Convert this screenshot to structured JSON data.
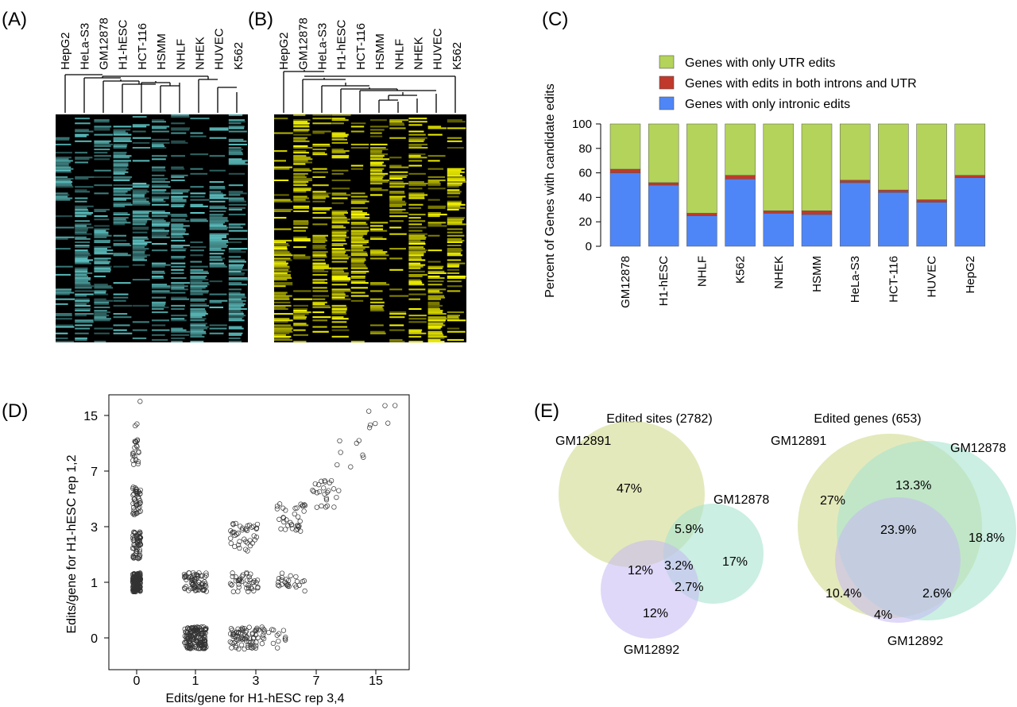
{
  "panels": {
    "a": "(A)",
    "b": "(B)",
    "c": "(C)",
    "d": "(D)",
    "e": "(E)"
  },
  "heatmap_a": {
    "columns": [
      "HepG2",
      "HeLa-S3",
      "GM12878",
      "H1-hESC",
      "HCT-116",
      "HSMM",
      "NHLF",
      "NHEK",
      "HUVEC",
      "K562"
    ],
    "color": "#5fc4c4",
    "background": "#000000"
  },
  "heatmap_b": {
    "columns": [
      "HepG2",
      "GM12878",
      "HeLa-S3",
      "H1-hESC",
      "HCT-116",
      "HSMM",
      "NHLF",
      "NHEK",
      "HUVEC",
      "K562"
    ],
    "color": "#ffff00",
    "background": "#000000"
  },
  "colors": {
    "utr": "#b3d35a",
    "both": "#c0392b",
    "intronic": "#4f86f7",
    "venn_gm12891": "#dde3a8",
    "venn_gm12878": "#a9e4cf",
    "venn_gm12892": "#c5b8f2"
  },
  "chart_data": [
    {
      "panel": "C",
      "type": "bar",
      "stacked": true,
      "categories": [
        "GM12878",
        "H1-hESC",
        "NHLF",
        "K562",
        "NHEK",
        "HSMM",
        "HeLa-S3",
        "HCT-116",
        "HUVEC",
        "HepG2"
      ],
      "series": [
        {
          "name": "Genes with only intronic edits",
          "values": [
            60,
            50,
            25,
            55,
            27,
            26,
            52,
            44,
            36,
            56
          ]
        },
        {
          "name": "Genes with edits in both introns and UTR",
          "values": [
            3,
            2,
            2,
            3,
            2,
            3,
            2,
            2,
            2,
            2
          ]
        },
        {
          "name": "Genes with only UTR edits",
          "values": [
            37,
            48,
            73,
            42,
            71,
            71,
            46,
            54,
            62,
            42
          ]
        }
      ],
      "legend_order": [
        "Genes with only UTR edits",
        "Genes with edits in both introns and UTR",
        "Genes with only intronic edits"
      ],
      "ylabel": "Percent of Genes with candidate edits",
      "ylim": [
        0,
        100
      ],
      "yticks": [
        0,
        20,
        40,
        60,
        80,
        100
      ],
      "legend_position": "top"
    },
    {
      "panel": "D",
      "type": "scatter",
      "xlabel": "Edits/gene for H1-hESC rep 3,4",
      "ylabel": "Edits/gene for H1-hESC rep 1,2",
      "xticks": [
        "0",
        "1",
        "3",
        "7",
        "15"
      ],
      "yticks": [
        "0",
        "1",
        "3",
        "7",
        "15"
      ],
      "scale": "log2(x+1)",
      "clusters": [
        {
          "x": 0,
          "y": 1,
          "count": 160
        },
        {
          "x": 0,
          "y": 2.2,
          "count": 60
        },
        {
          "x": 0,
          "y": 4.5,
          "count": 45
        },
        {
          "x": 0,
          "y": 9,
          "count": 20
        },
        {
          "x": 1,
          "y": 0,
          "count": 160
        },
        {
          "x": 1,
          "y": 1,
          "count": 70
        },
        {
          "x": 2.5,
          "y": 0,
          "count": 70
        },
        {
          "x": 2.5,
          "y": 1,
          "count": 40
        },
        {
          "x": 4,
          "y": 0,
          "count": 20
        },
        {
          "x": 5,
          "y": 1,
          "count": 25
        },
        {
          "x": 2.5,
          "y": 2.5,
          "count": 40
        },
        {
          "x": 5,
          "y": 3.5,
          "count": 35
        },
        {
          "x": 8,
          "y": 5,
          "count": 25
        },
        {
          "x": 11,
          "y": 9,
          "count": 8
        },
        {
          "x": 16,
          "y": 15,
          "count": 7
        },
        {
          "x": 0,
          "y": 15,
          "count": 3
        }
      ]
    },
    {
      "panel": "E",
      "type": "venn",
      "title": "Edited sites (2782)",
      "sets": [
        "GM12891",
        "GM12878",
        "GM12892"
      ],
      "regions": {
        "gm12891_only": "47%",
        "gm12878_only": "17%",
        "gm12892_only": "12%",
        "gm12891_gm12878": "5.9%",
        "gm12891_gm12892": "12%",
        "gm12878_gm12892": "2.7%",
        "all": "3.2%"
      }
    },
    {
      "panel": "E",
      "type": "venn",
      "title": "Edited genes (653)",
      "sets": [
        "GM12891",
        "GM12878",
        "GM12892"
      ],
      "regions": {
        "gm12891_only": "27%",
        "gm12878_only": "18.8%",
        "gm12892_only": "4%",
        "gm12891_gm12878": "13.3%",
        "gm12891_gm12892": "10.4%",
        "gm12878_gm12892": "2.6%",
        "all": "23.9%"
      }
    }
  ]
}
